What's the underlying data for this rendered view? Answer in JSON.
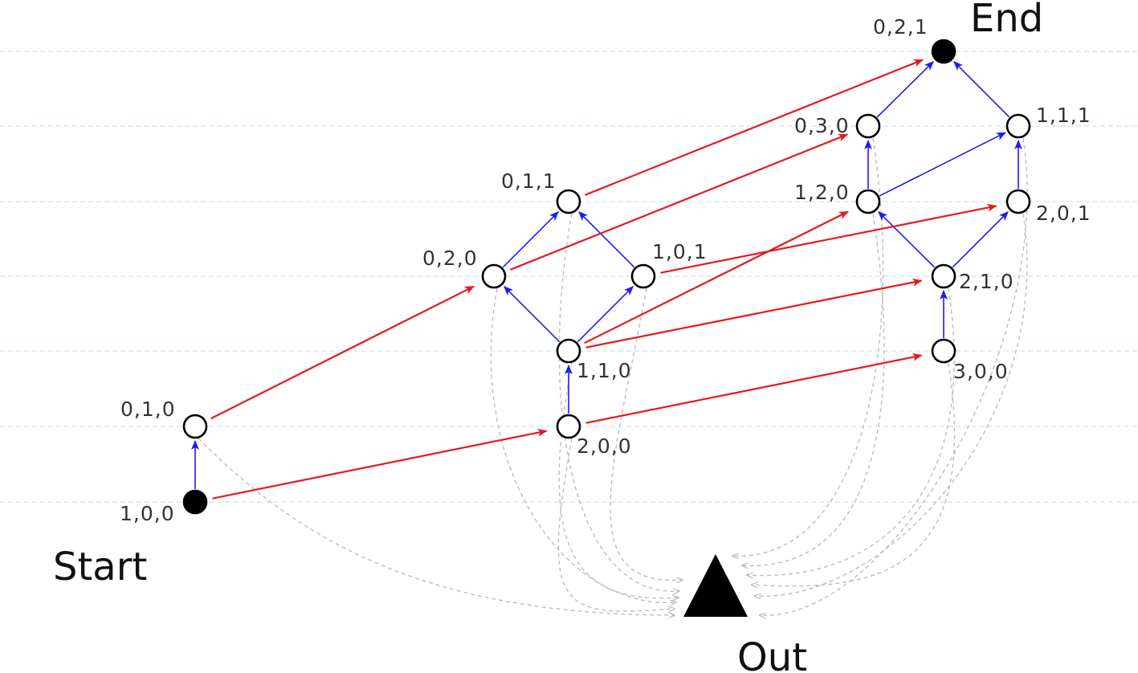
{
  "labels": {
    "start": "Start",
    "end": "End",
    "out": "Out"
  },
  "colors": {
    "red_edge": "#e8191c",
    "blue_edge": "#1c1cf0",
    "dashed_edge": "#bdbdbd",
    "grid_line": "#b7e3de",
    "node_stroke": "#000000",
    "filled_node": "#000000"
  },
  "nodes": [
    {
      "id": "n100",
      "label": "1,0,0",
      "filled": true
    },
    {
      "id": "n010",
      "label": "0,1,0",
      "filled": false
    },
    {
      "id": "n200",
      "label": "2,0,0",
      "filled": false
    },
    {
      "id": "n110",
      "label": "1,1,0",
      "filled": false
    },
    {
      "id": "n020",
      "label": "0,2,0",
      "filled": false
    },
    {
      "id": "n101",
      "label": "1,0,1",
      "filled": false
    },
    {
      "id": "n011",
      "label": "0,1,1",
      "filled": false
    },
    {
      "id": "n300",
      "label": "3,0,0",
      "filled": false
    },
    {
      "id": "n210",
      "label": "2,1,0",
      "filled": false
    },
    {
      "id": "n120",
      "label": "1,2,0",
      "filled": false
    },
    {
      "id": "n201",
      "label": "2,0,1",
      "filled": false
    },
    {
      "id": "n030",
      "label": "0,3,0",
      "filled": false
    },
    {
      "id": "n111",
      "label": "1,1,1",
      "filled": false
    },
    {
      "id": "n021",
      "label": "0,2,1",
      "filled": true
    }
  ],
  "edges_blue": [
    [
      "n100",
      "n010"
    ],
    [
      "n200",
      "n110"
    ],
    [
      "n110",
      "n020"
    ],
    [
      "n110",
      "n101"
    ],
    [
      "n020",
      "n011"
    ],
    [
      "n101",
      "n011"
    ],
    [
      "n300",
      "n210"
    ],
    [
      "n210",
      "n120"
    ],
    [
      "n210",
      "n201"
    ],
    [
      "n120",
      "n030"
    ],
    [
      "n120",
      "n111"
    ],
    [
      "n201",
      "n111"
    ],
    [
      "n030",
      "n021"
    ],
    [
      "n111",
      "n021"
    ]
  ],
  "edges_red": [
    [
      "n100",
      "n200"
    ],
    [
      "n010",
      "n020"
    ],
    [
      "n200",
      "n300"
    ],
    [
      "n110",
      "n210"
    ],
    [
      "n110",
      "n120"
    ],
    [
      "n020",
      "n030"
    ],
    [
      "n101",
      "n201"
    ],
    [
      "n011",
      "n021"
    ]
  ],
  "edges_dashed_to_out": [
    "n010",
    "n020",
    "n011",
    "n101",
    "n110",
    "n200",
    "n030",
    "n120",
    "n210",
    "n300",
    "n201",
    "n111"
  ]
}
